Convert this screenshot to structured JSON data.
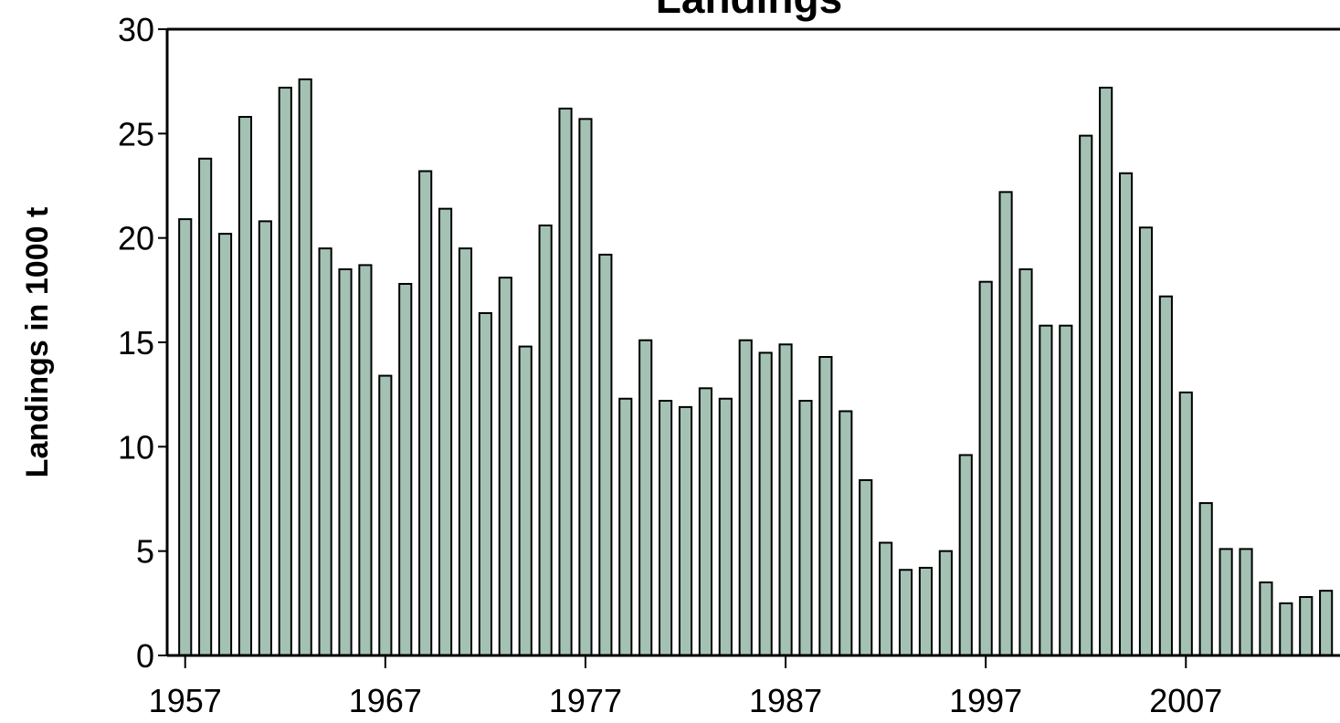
{
  "chart_data": {
    "type": "bar",
    "title": "Landings",
    "y_label": "Landings in 1000 t",
    "x": [
      1957,
      1958,
      1959,
      1960,
      1961,
      1962,
      1963,
      1964,
      1965,
      1966,
      1967,
      1968,
      1969,
      1970,
      1971,
      1972,
      1973,
      1974,
      1975,
      1976,
      1977,
      1978,
      1979,
      1980,
      1981,
      1982,
      1983,
      1984,
      1985,
      1986,
      1987,
      1988,
      1989,
      1990,
      1991,
      1992,
      1993,
      1994,
      1995,
      1996,
      1997,
      1998,
      1999,
      2000,
      2001,
      2002,
      2003,
      2004,
      2005,
      2006,
      2007,
      2008,
      2009,
      2010,
      2011,
      2012,
      2013,
      2014
    ],
    "values": [
      20.9,
      23.8,
      20.2,
      25.8,
      20.8,
      27.2,
      27.6,
      19.5,
      18.5,
      18.7,
      13.4,
      17.8,
      23.2,
      21.4,
      19.5,
      16.4,
      18.1,
      14.8,
      20.6,
      26.2,
      25.7,
      19.2,
      12.3,
      15.1,
      12.2,
      11.9,
      12.8,
      12.3,
      15.1,
      14.5,
      14.9,
      12.2,
      14.3,
      11.7,
      8.4,
      5.4,
      4.1,
      4.2,
      5.0,
      9.6,
      17.9,
      22.2,
      18.5,
      15.8,
      15.8,
      24.9,
      27.2,
      23.1,
      20.5,
      17.2,
      12.6,
      7.3,
      5.1,
      5.1,
      3.5,
      2.5,
      2.8,
      3.1
    ],
    "color": "#a3c2b4",
    "xlim": [
      1956.1,
      2014.7
    ],
    "xticks": [
      1957,
      1967,
      1977,
      1987,
      1997,
      2007
    ],
    "ylim": [
      0,
      30
    ],
    "yticks": [
      0,
      5,
      10,
      15,
      20,
      25,
      30
    ],
    "grid": false
  }
}
